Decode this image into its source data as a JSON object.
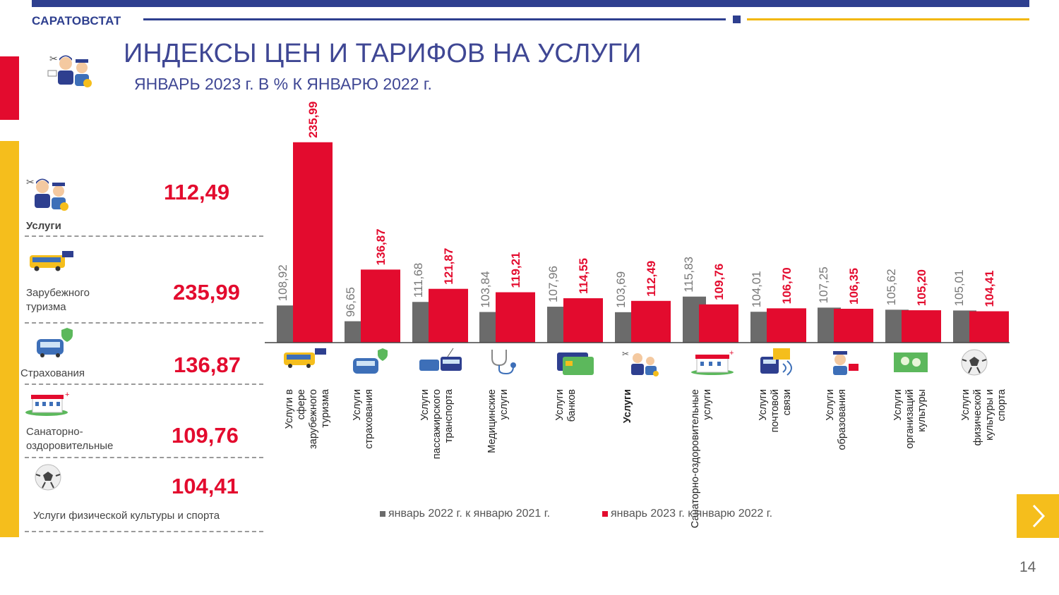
{
  "header": {
    "brand": "САРАТОВСТАТ",
    "title": "ИНДЕКСЫ ЦЕН И ТАРИФОВ НА УСЛУГИ",
    "subtitle": "ЯНВАРЬ 2023 г. В % К ЯНВАРЮ 2022 г.",
    "icon": "services-people-icon"
  },
  "summary": [
    {
      "label": "Услуги",
      "value": "112,49",
      "icon": "services-people-icon"
    },
    {
      "label": "Зарубежного туризма",
      "value": "235,99",
      "icon": "bus-icon"
    },
    {
      "label": "Страхования",
      "value": "136,87",
      "icon": "car-shield-icon"
    },
    {
      "label": "Санаторно-оздоровительные",
      "value": "109,76",
      "icon": "sanatorium-icon"
    },
    {
      "label": "Услуги физической культуры и спорта",
      "value": "104,41",
      "icon": "soccer-ball-icon"
    }
  ],
  "chart_data": {
    "type": "bar",
    "categories": [
      "Услуги в сфере зарубежного туризма",
      "Услуги страхования",
      "Услуги пассажирского транспорта",
      "Медицинские услуги",
      "Услуги банков",
      "Услуги",
      "Санаторно-оздоровительные услуги",
      "Услуги почтовой связи",
      "Услуги образования",
      "Услуги организаций культуры",
      "Услуги физической культуры и спорта"
    ],
    "category_icons": [
      "bus-icon",
      "car-shield-icon",
      "transport-icon",
      "stethoscope-icon",
      "bank-card-icon",
      "services-people-icon",
      "sanatorium-icon",
      "post-icon",
      "education-icon",
      "culture-icon",
      "soccer-ball-icon"
    ],
    "series": [
      {
        "name": "январь 2022 г. к январю 2021 г.",
        "values": [
          108.92,
          96.65,
          111.68,
          103.84,
          107.96,
          103.69,
          115.83,
          104.01,
          107.25,
          105.62,
          105.01
        ],
        "labels": [
          "108,92",
          "96,65",
          "111,68",
          "103,84",
          "107,96",
          "103,69",
          "115,83",
          "104,01",
          "107,25",
          "105,62",
          "105,01"
        ]
      },
      {
        "name": "январь 2023 г. к январю 2022 г.",
        "values": [
          235.99,
          136.87,
          121.87,
          119.21,
          114.55,
          112.49,
          109.76,
          106.7,
          106.35,
          105.2,
          104.41
        ],
        "labels": [
          "235,99",
          "136,87",
          "121,87",
          "119,21",
          "114,55",
          "112,49",
          "109,76",
          "106,70",
          "106,35",
          "105,20",
          "104,41"
        ]
      }
    ],
    "highlight_category": "Услуги",
    "colors": {
      "series1": "#6b6b6b",
      "series2": "#e30b2e"
    },
    "legend_position": "bottom"
  },
  "footer": {
    "page_number": "14",
    "next_icon": "chevron-right-icon"
  }
}
